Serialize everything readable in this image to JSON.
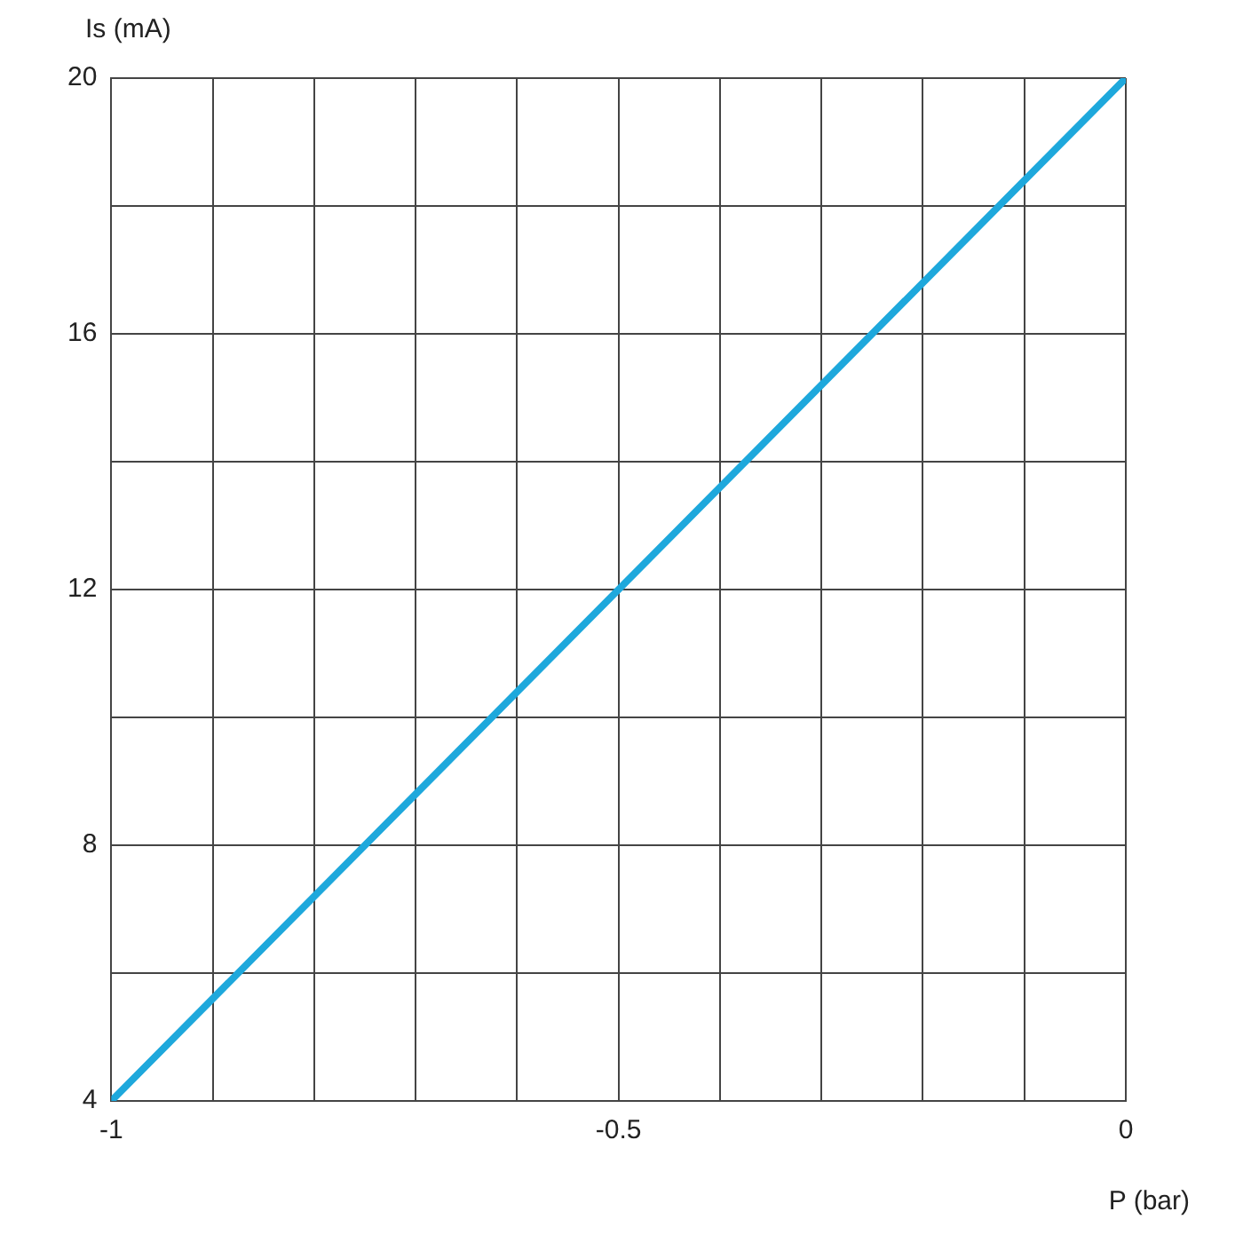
{
  "chart_data": {
    "type": "line",
    "xlabel": "P (bar)",
    "ylabel": "Is (mA)",
    "x": [
      -1,
      0
    ],
    "series": [
      {
        "color": "#1ea8dc",
        "values": [
          4,
          20
        ]
      }
    ],
    "xlim": [
      -1,
      0
    ],
    "xticks": [
      {
        "value": -1,
        "label": "-1"
      },
      {
        "value": -0.9,
        "label": null
      },
      {
        "value": -0.8,
        "label": null
      },
      {
        "value": -0.7,
        "label": null
      },
      {
        "value": -0.6,
        "label": null
      },
      {
        "value": -0.5,
        "label": "-0.5"
      },
      {
        "value": -0.4,
        "label": null
      },
      {
        "value": -0.3,
        "label": null
      },
      {
        "value": -0.2,
        "label": null
      },
      {
        "value": -0.1,
        "label": null
      },
      0
    ],
    "ylim": [
      4,
      20
    ],
    "yticks": [
      4,
      {
        "value": 6,
        "label": null
      },
      8,
      {
        "value": 10,
        "label": null
      },
      12,
      {
        "value": 14,
        "label": null
      },
      16,
      {
        "value": 18,
        "label": null
      },
      20
    ],
    "grid": true,
    "legend": false,
    "marker": "none",
    "line_style": "solid"
  }
}
